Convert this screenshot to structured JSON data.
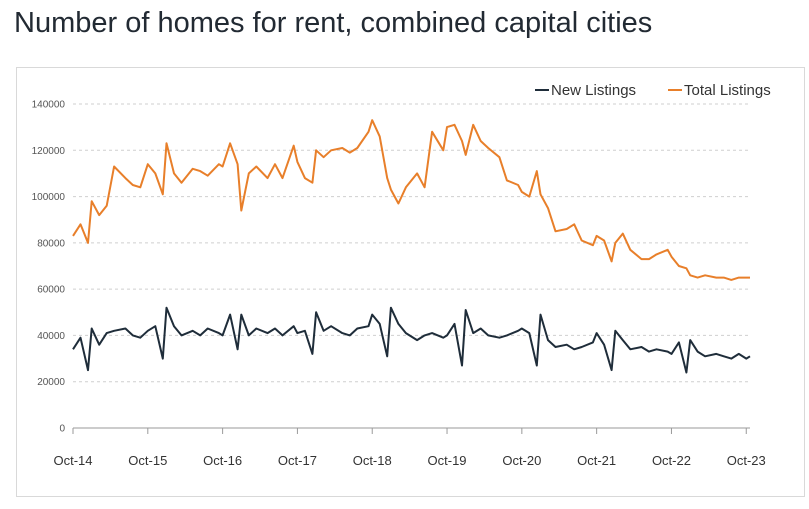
{
  "title": "Number of homes for rent, combined capital cities",
  "chart_data": {
    "type": "line",
    "title": "Number of homes for rent, combined capital cities",
    "xlabel": "",
    "ylabel": "",
    "ylim": [
      0,
      140000
    ],
    "y_ticks": [
      0,
      20000,
      40000,
      60000,
      80000,
      100000,
      120000,
      140000
    ],
    "y_tick_labels": [
      "0",
      "20000",
      "40000",
      "60000",
      "80000",
      "100000",
      "120000",
      "140000"
    ],
    "x_ticks": [
      "Oct-14",
      "Oct-15",
      "Oct-16",
      "Oct-17",
      "Oct-18",
      "Oct-19",
      "Oct-20",
      "Oct-21",
      "Oct-22",
      "Oct-23"
    ],
    "grid": "horizontal dashed",
    "legend": "top-right",
    "series": [
      {
        "name": "New Listings",
        "color": "#1f2d3a",
        "x": [
          2014.75,
          2014.85,
          2014.95,
          2015.0,
          2015.1,
          2015.2,
          2015.3,
          2015.45,
          2015.55,
          2015.65,
          2015.75,
          2015.85,
          2015.95,
          2016.0,
          2016.1,
          2016.2,
          2016.35,
          2016.45,
          2016.55,
          2016.7,
          2016.75,
          2016.85,
          2016.95,
          2017.0,
          2017.1,
          2017.2,
          2017.35,
          2017.45,
          2017.55,
          2017.7,
          2017.75,
          2017.85,
          2017.95,
          2018.0,
          2018.1,
          2018.2,
          2018.35,
          2018.45,
          2018.55,
          2018.7,
          2018.75,
          2018.85,
          2018.95,
          2019.0,
          2019.1,
          2019.2,
          2019.35,
          2019.45,
          2019.55,
          2019.7,
          2019.75,
          2019.85,
          2019.95,
          2020.0,
          2020.1,
          2020.2,
          2020.3,
          2020.45,
          2020.55,
          2020.7,
          2020.75,
          2020.85,
          2020.95,
          2021.0,
          2021.1,
          2021.2,
          2021.35,
          2021.45,
          2021.55,
          2021.7,
          2021.75,
          2021.85,
          2021.95,
          2022.0,
          2022.1,
          2022.2,
          2022.35,
          2022.45,
          2022.55,
          2022.7,
          2022.75,
          2022.85,
          2022.95,
          2023.0,
          2023.1,
          2023.2,
          2023.35,
          2023.45,
          2023.55,
          2023.65,
          2023.75,
          2023.8
        ],
        "values": [
          34000,
          39000,
          25000,
          43000,
          36000,
          41000,
          42000,
          43000,
          40000,
          39000,
          42000,
          44000,
          30000,
          52000,
          44000,
          40000,
          42000,
          40000,
          43000,
          41000,
          40000,
          49000,
          34000,
          49000,
          40000,
          43000,
          41000,
          43000,
          40000,
          44000,
          41000,
          42000,
          32000,
          50000,
          42000,
          44000,
          41000,
          40000,
          43000,
          44000,
          49000,
          45000,
          31000,
          52000,
          45000,
          41000,
          38000,
          40000,
          41000,
          39000,
          40000,
          45000,
          27000,
          51000,
          41000,
          43000,
          40000,
          39000,
          40000,
          42000,
          43000,
          41000,
          27000,
          49000,
          38000,
          35000,
          36000,
          34000,
          35000,
          37000,
          41000,
          36000,
          25000,
          42000,
          38000,
          34000,
          35000,
          33000,
          34000,
          33000,
          32000,
          37000,
          24000,
          38000,
          33000,
          31000,
          32000,
          31000,
          30000,
          32000,
          30000,
          31000
        ]
      },
      {
        "name": "Total Listings",
        "color": "#e87f2a",
        "x": [
          2014.75,
          2014.85,
          2014.95,
          2015.0,
          2015.1,
          2015.2,
          2015.3,
          2015.45,
          2015.55,
          2015.65,
          2015.75,
          2015.85,
          2015.95,
          2016.0,
          2016.1,
          2016.2,
          2016.35,
          2016.45,
          2016.55,
          2016.7,
          2016.75,
          2016.85,
          2016.95,
          2017.0,
          2017.1,
          2017.2,
          2017.35,
          2017.45,
          2017.55,
          2017.7,
          2017.75,
          2017.85,
          2017.95,
          2018.0,
          2018.1,
          2018.2,
          2018.35,
          2018.45,
          2018.55,
          2018.7,
          2018.75,
          2018.85,
          2018.95,
          2019.0,
          2019.1,
          2019.2,
          2019.35,
          2019.45,
          2019.55,
          2019.7,
          2019.75,
          2019.85,
          2019.95,
          2020.0,
          2020.1,
          2020.2,
          2020.3,
          2020.45,
          2020.55,
          2020.7,
          2020.75,
          2020.85,
          2020.95,
          2021.0,
          2021.1,
          2021.2,
          2021.35,
          2021.45,
          2021.55,
          2021.7,
          2021.75,
          2021.85,
          2021.95,
          2022.0,
          2022.1,
          2022.2,
          2022.35,
          2022.45,
          2022.55,
          2022.7,
          2022.75,
          2022.85,
          2022.95,
          2023.0,
          2023.1,
          2023.2,
          2023.35,
          2023.45,
          2023.55,
          2023.65,
          2023.75,
          2023.8
        ],
        "values": [
          83000,
          88000,
          80000,
          98000,
          92000,
          96000,
          113000,
          108000,
          105000,
          104000,
          114000,
          110000,
          101000,
          123000,
          110000,
          106000,
          112000,
          111000,
          109000,
          114000,
          113000,
          123000,
          114000,
          94000,
          110000,
          113000,
          108000,
          114000,
          108000,
          122000,
          115000,
          108000,
          106000,
          120000,
          117000,
          120000,
          121000,
          119000,
          121000,
          128000,
          133000,
          126000,
          108000,
          103000,
          97000,
          104000,
          110000,
          104000,
          128000,
          120000,
          130000,
          131000,
          124000,
          118000,
          131000,
          124000,
          121000,
          117000,
          107000,
          105000,
          102000,
          100000,
          111000,
          101000,
          95000,
          85000,
          86000,
          88000,
          81000,
          79000,
          83000,
          81000,
          72000,
          80000,
          84000,
          77000,
          73000,
          73000,
          75000,
          77000,
          74000,
          70000,
          69000,
          66000,
          65000,
          66000,
          65000,
          65000,
          64000,
          65000,
          65000,
          65000
        ]
      }
    ]
  }
}
